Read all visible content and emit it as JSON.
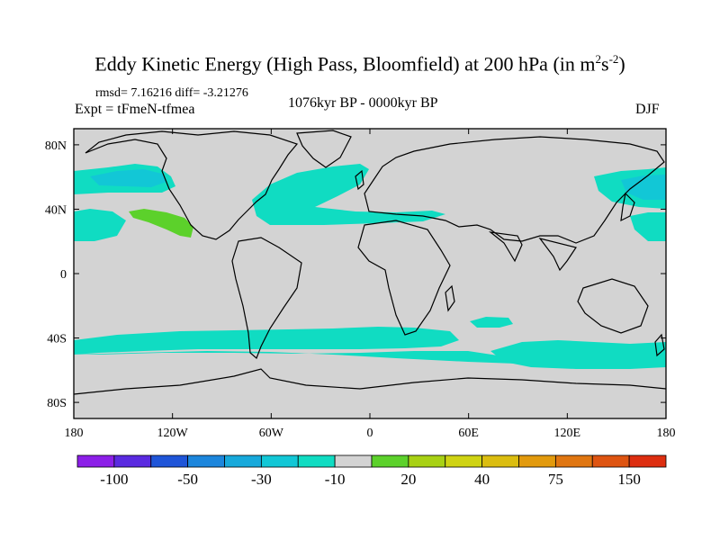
{
  "title": {
    "main": "Eddy Kinetic Energy (High Pass, Bloomfield) at 200 hPa (in m",
    "sup1": "2",
    "mid": "s",
    "sup2": "-2",
    "end": ")"
  },
  "stats": "rmsd= 7.16216 diff= -3.21276",
  "expt": "Expt = tFmeN-tfmea",
  "period": "1076kyr BP - 0000kyr BP",
  "season": "DJF",
  "axes": {
    "x_ticks": [
      "180",
      "120W",
      "60W",
      "0",
      "60E",
      "120E",
      "180"
    ],
    "x_values": [
      -180,
      -120,
      -60,
      0,
      60,
      120,
      180
    ],
    "y_ticks": [
      "80N",
      "40N",
      "0",
      "40S",
      "80S"
    ],
    "y_values": [
      80,
      40,
      0,
      -40,
      -80
    ]
  },
  "colorbar": {
    "colors": [
      "#8c1fe8",
      "#5a2ae0",
      "#1f55d8",
      "#1c86dc",
      "#17a9db",
      "#12c7d6",
      "#10dcc2",
      "#d3d3d3",
      "#5cd12b",
      "#a8d114",
      "#cfd313",
      "#dbbd10",
      "#e29a0d",
      "#e07611",
      "#de5411",
      "#dd2e10"
    ],
    "labels": [
      "-100",
      "-50",
      "-30",
      "-10",
      "20",
      "40",
      "75",
      "150"
    ],
    "label_after_box": [
      1,
      3,
      5,
      7,
      9,
      11,
      13,
      15
    ]
  },
  "legend_colors": {
    "ocean_background": "#d3d3d3",
    "cyan_band": "#10dcc2",
    "light_cyan_core": "#12c7d6",
    "green_patch": "#5cd12b"
  }
}
